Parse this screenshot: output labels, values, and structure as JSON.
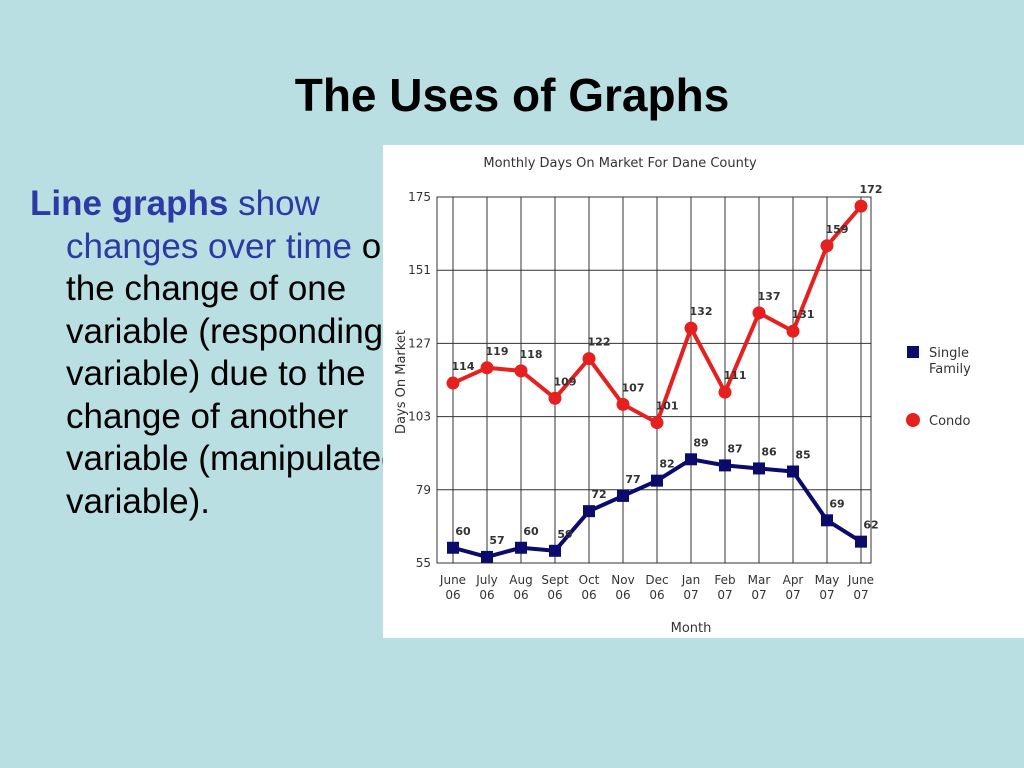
{
  "slide": {
    "title": "The Uses of Graphs",
    "body": [
      "Line graphs",
      "show changes over time",
      "or the change of one variable (responding variable) due to the change of another variable (manipulated variable)."
    ]
  },
  "chart_data": {
    "type": "line",
    "title": "Monthly Days On Market For Dane County",
    "x_label": "Month",
    "y_label": "Days On Market",
    "categories": [
      "June 06",
      "July 06",
      "Aug 06",
      "Sept 06",
      "Oct 06",
      "Nov 06",
      "Dec 06",
      "Jan 07",
      "Feb 07",
      "Mar 07",
      "Apr 07",
      "May 07",
      "June 07"
    ],
    "series": [
      {
        "name": "Single Family",
        "color": "#0b0b6b",
        "marker": "square",
        "values": [
          60,
          57,
          60,
          59,
          72,
          77,
          82,
          89,
          87,
          86,
          85,
          69,
          62
        ]
      },
      {
        "name": "Condo",
        "color": "#e5201f",
        "marker": "circle",
        "values": [
          114,
          119,
          118,
          109,
          122,
          107,
          101,
          132,
          111,
          137,
          131,
          159,
          172
        ]
      }
    ],
    "ylim": [
      55,
      175
    ],
    "yticks": [
      55,
      79,
      103,
      127,
      151,
      175
    ],
    "grid": true,
    "legend": "right"
  }
}
